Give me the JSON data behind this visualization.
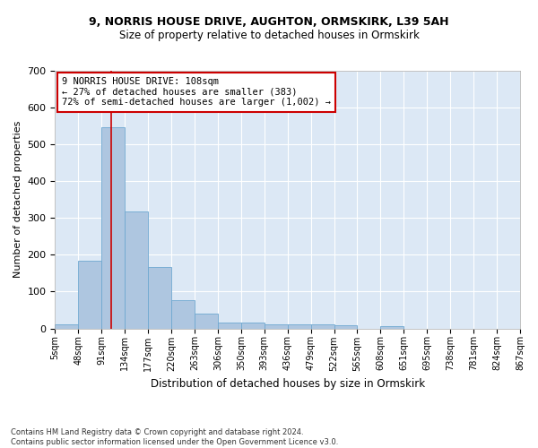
{
  "title_line1": "9, NORRIS HOUSE DRIVE, AUGHTON, ORMSKIRK, L39 5AH",
  "title_line2": "Size of property relative to detached houses in Ormskirk",
  "xlabel": "Distribution of detached houses by size in Ormskirk",
  "ylabel": "Number of detached properties",
  "footnote": "Contains HM Land Registry data © Crown copyright and database right 2024.\nContains public sector information licensed under the Open Government Licence v3.0.",
  "bin_labels": [
    "5sqm",
    "48sqm",
    "91sqm",
    "134sqm",
    "177sqm",
    "220sqm",
    "263sqm",
    "306sqm",
    "350sqm",
    "393sqm",
    "436sqm",
    "479sqm",
    "522sqm",
    "565sqm",
    "608sqm",
    "651sqm",
    "695sqm",
    "738sqm",
    "781sqm",
    "824sqm",
    "867sqm"
  ],
  "bar_values": [
    10,
    185,
    547,
    318,
    168,
    77,
    40,
    16,
    16,
    11,
    11,
    11,
    8,
    0,
    6,
    0,
    0,
    0,
    0,
    0
  ],
  "bar_color": "#aec6e0",
  "bar_edge_color": "#6fa8d0",
  "background_color": "#dce8f5",
  "grid_color": "#ffffff",
  "annotation_text": "9 NORRIS HOUSE DRIVE: 108sqm\n← 27% of detached houses are smaller (383)\n72% of semi-detached houses are larger (1,002) →",
  "annotation_box_color": "#ffffff",
  "annotation_border_color": "#cc0000",
  "property_line_color": "#cc0000",
  "ylim": [
    0,
    700
  ],
  "yticks": [
    0,
    100,
    200,
    300,
    400,
    500,
    600,
    700
  ]
}
